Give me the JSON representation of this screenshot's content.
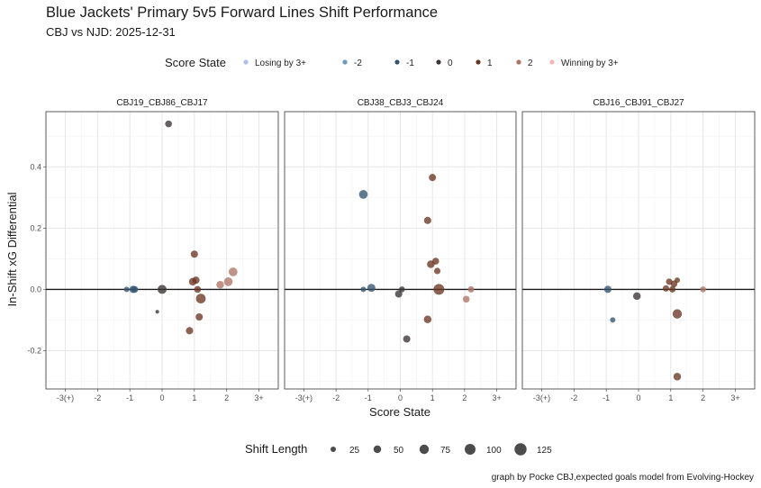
{
  "chart_data": {
    "type": "scatter",
    "title": "Blue Jackets' Primary 5v5 Forward Lines Shift Performance",
    "subtitle": "CBJ vs NJD: 2025-12-31",
    "xlabel": "Score State",
    "ylabel": "In-Shift xG Differential",
    "caption": "graph by Pocke CBJ,expected goals model from Evolving-Hockey",
    "x_ticks": [
      -3,
      -2,
      -1,
      0,
      1,
      2,
      3
    ],
    "x_tick_labels": [
      "-3(+)",
      "-2",
      "-1",
      "0",
      "1",
      "2",
      "3+"
    ],
    "xlim": [
      -3.6,
      3.6
    ],
    "y_ticks": [
      -0.2,
      0.0,
      0.2,
      0.4
    ],
    "y_tick_labels": [
      "-0.2",
      "0.0",
      "0.2",
      "0.4"
    ],
    "ylim": [
      -0.325,
      0.58
    ],
    "grid": true,
    "hline_y": 0,
    "color_legend": {
      "title": "Score State",
      "position": "top",
      "entries": [
        {
          "label": "Losing by 3+",
          "color": "#aebfe8"
        },
        {
          "label": "-2",
          "color": "#6a9bb8"
        },
        {
          "label": "-1",
          "color": "#35556f"
        },
        {
          "label": "0",
          "color": "#3b3535"
        },
        {
          "label": "1",
          "color": "#6a3622"
        },
        {
          "label": "2",
          "color": "#ad7565"
        },
        {
          "label": "Winning by 3+",
          "color": "#f4b7b7"
        }
      ]
    },
    "size_legend": {
      "title": "Shift Length",
      "position": "bottom",
      "values": [
        25,
        50,
        75,
        100,
        125
      ],
      "labels": [
        "25",
        "50",
        "75",
        "100",
        "125"
      ]
    },
    "panels": [
      {
        "label": "CBJ19_CBJ86_CBJ17",
        "points": [
          {
            "x": -1.1,
            "y": 0.0,
            "state": "-1",
            "length": 25
          },
          {
            "x": -0.9,
            "y": 0.0,
            "state": "-1",
            "length": 45
          },
          {
            "x": -0.85,
            "y": 0.0,
            "state": "-1",
            "length": 40
          },
          {
            "x": 0.2,
            "y": 0.54,
            "state": "0",
            "length": 40
          },
          {
            "x": -0.15,
            "y": -0.073,
            "state": "0",
            "length": 12
          },
          {
            "x": 0.0,
            "y": 0.0,
            "state": "0",
            "length": 70
          },
          {
            "x": 0.85,
            "y": -0.135,
            "state": "1",
            "length": 45
          },
          {
            "x": 0.95,
            "y": 0.025,
            "state": "1",
            "length": 50
          },
          {
            "x": 1.0,
            "y": 0.115,
            "state": "1",
            "length": 45
          },
          {
            "x": 1.05,
            "y": 0.03,
            "state": "1",
            "length": 45
          },
          {
            "x": 1.1,
            "y": 0.0,
            "state": "1",
            "length": 40
          },
          {
            "x": 1.15,
            "y": -0.09,
            "state": "1",
            "length": 45
          },
          {
            "x": 1.2,
            "y": -0.03,
            "state": "1",
            "length": 80
          },
          {
            "x": 1.8,
            "y": 0.015,
            "state": "2",
            "length": 50
          },
          {
            "x": 2.05,
            "y": 0.025,
            "state": "2",
            "length": 65
          },
          {
            "x": 2.2,
            "y": 0.057,
            "state": "2",
            "length": 65
          }
        ]
      },
      {
        "label": "CBJ38_CBJ3_CBJ24",
        "points": [
          {
            "x": -1.15,
            "y": 0.31,
            "state": "-1",
            "length": 65
          },
          {
            "x": -1.15,
            "y": 0.0,
            "state": "-1",
            "length": 25
          },
          {
            "x": -0.9,
            "y": 0.005,
            "state": "-1",
            "length": 55
          },
          {
            "x": -0.05,
            "y": -0.015,
            "state": "0",
            "length": 45
          },
          {
            "x": 0.05,
            "y": 0.0,
            "state": "0",
            "length": 30
          },
          {
            "x": 0.2,
            "y": -0.162,
            "state": "0",
            "length": 45
          },
          {
            "x": 0.85,
            "y": 0.225,
            "state": "1",
            "length": 45
          },
          {
            "x": 0.85,
            "y": -0.098,
            "state": "1",
            "length": 50
          },
          {
            "x": 1.0,
            "y": 0.365,
            "state": "1",
            "length": 45
          },
          {
            "x": 0.95,
            "y": 0.082,
            "state": "1",
            "length": 50
          },
          {
            "x": 1.1,
            "y": 0.092,
            "state": "1",
            "length": 40
          },
          {
            "x": 1.15,
            "y": 0.06,
            "state": "1",
            "length": 35
          },
          {
            "x": 1.2,
            "y": 0.0,
            "state": "1",
            "length": 100
          },
          {
            "x": 2.05,
            "y": -0.032,
            "state": "2",
            "length": 40
          },
          {
            "x": 2.2,
            "y": 0.0,
            "state": "2",
            "length": 35
          }
        ]
      },
      {
        "label": "CBJ16_CBJ91_CBJ27",
        "points": [
          {
            "x": -0.95,
            "y": 0.0,
            "state": "-1",
            "length": 45
          },
          {
            "x": -0.8,
            "y": -0.1,
            "state": "-1",
            "length": 25
          },
          {
            "x": -0.05,
            "y": -0.022,
            "state": "0",
            "length": 50
          },
          {
            "x": 0.85,
            "y": 0.003,
            "state": "1",
            "length": 35
          },
          {
            "x": 0.95,
            "y": 0.025,
            "state": "1",
            "length": 35
          },
          {
            "x": 1.05,
            "y": 0.0,
            "state": "1",
            "length": 35
          },
          {
            "x": 1.1,
            "y": 0.018,
            "state": "1",
            "length": 40
          },
          {
            "x": 1.2,
            "y": 0.03,
            "state": "1",
            "length": 25
          },
          {
            "x": 1.2,
            "y": -0.08,
            "state": "1",
            "length": 75
          },
          {
            "x": 1.2,
            "y": -0.285,
            "state": "1",
            "length": 50
          },
          {
            "x": 2.0,
            "y": 0.0,
            "state": "2",
            "length": 30
          }
        ]
      }
    ]
  }
}
